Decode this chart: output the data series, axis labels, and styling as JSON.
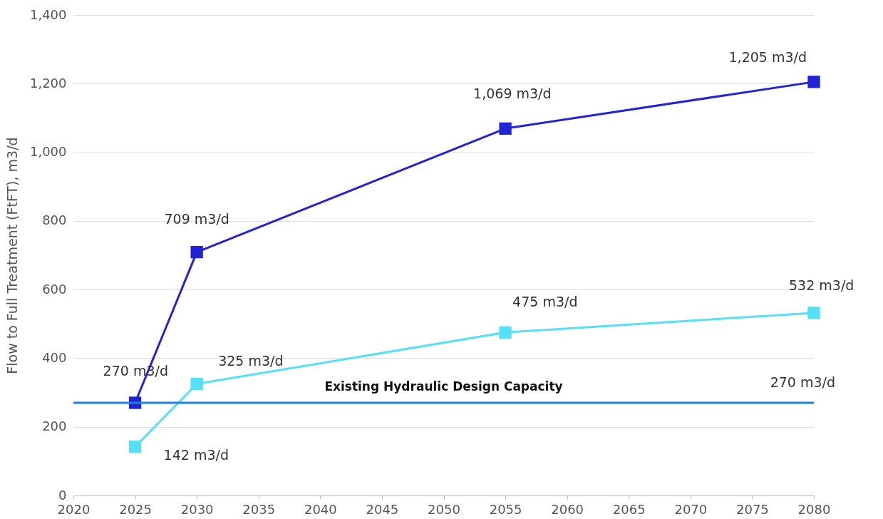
{
  "chart_data": {
    "type": "line",
    "ylabel": "Flow to Full Treatment (FtFT), m3/d",
    "x": [
      2025,
      2030,
      2055,
      2080
    ],
    "xlim": [
      2020,
      2080
    ],
    "xticks": [
      2020,
      2025,
      2030,
      2035,
      2040,
      2045,
      2050,
      2055,
      2060,
      2065,
      2070,
      2075,
      2080
    ],
    "ylim": [
      0,
      1400
    ],
    "yticks": [
      0,
      200,
      400,
      600,
      800,
      {
        "value": 1000,
        "label": "1,000"
      },
      {
        "value": 1200,
        "label": "1,200"
      },
      {
        "value": 1400,
        "label": "1,400"
      }
    ],
    "grid": "y",
    "legend": false,
    "marker": "square",
    "line_style": "solid",
    "series": [
      {
        "color": "#2222d6",
        "values": [
          270,
          709,
          1069,
          1205
        ],
        "value_labels": [
          "270 m3/d",
          "709 m3/d",
          "1,069 m3/d",
          "1,205 m3/d"
        ]
      },
      {
        "color": "#55e0f5",
        "values": [
          142,
          325,
          475,
          532
        ],
        "value_labels": [
          "142 m3/d",
          "325 m3/d",
          "475 m3/d",
          "532 m3/d"
        ]
      }
    ],
    "ref_lines": [
      {
        "axis": "y",
        "value": 270,
        "label": "Existing Hydraulic Design Capacity",
        "color": "#1a7fe0",
        "line_style": "solid"
      }
    ],
    "annotations": [
      {
        "text": "270 m3/d",
        "x": 2080,
        "y": 270
      }
    ]
  }
}
